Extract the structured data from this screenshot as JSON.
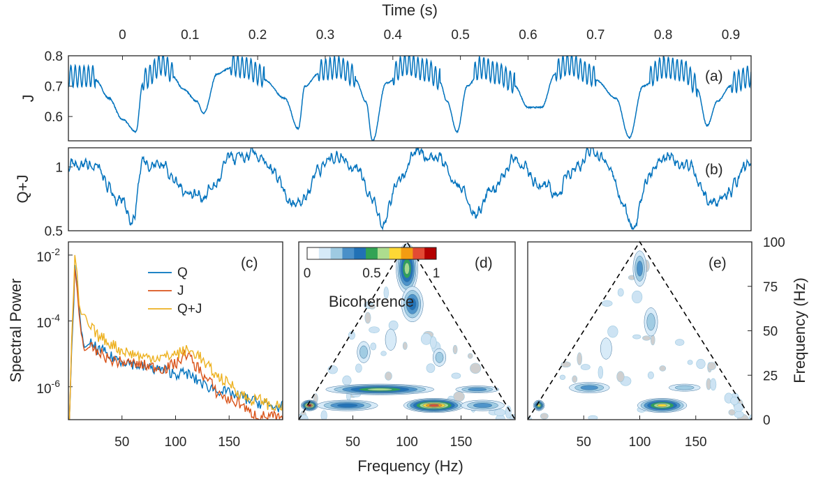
{
  "figure": {
    "top_axis_label": "Time (s)",
    "x_axis_label": "Frequency (Hz)",
    "right_axis_label": "Frequency (Hz)",
    "colors": {
      "Q": "#0072bd",
      "J": "#d95319",
      "QJ": "#edb120",
      "trace": "#0072bd",
      "frame": "#262626"
    }
  },
  "chart_data": [
    {
      "id": "a",
      "type": "line",
      "panel_label": "(a)",
      "ylabel": "J",
      "xlabel": "Time (s)",
      "xlim": [
        -0.08,
        0.93
      ],
      "ylim": [
        0.52,
        0.8
      ],
      "xticks": [
        0,
        0.1,
        0.2,
        0.3,
        0.4,
        0.5,
        0.6,
        0.7,
        0.8,
        0.9
      ],
      "xtick_labels": [
        "0",
        "0.1",
        "0.2",
        "0.3",
        "0.4",
        "0.5",
        "0.6",
        "0.7",
        "0.8",
        "0.9"
      ],
      "yticks": [
        0.6,
        0.7,
        0.8
      ],
      "ytick_labels": [
        "0.6",
        "0.7",
        "0.8"
      ],
      "series": [
        {
          "name": "J",
          "color": "#0072bd",
          "shape_points": [
            [
              -0.08,
              0.72
            ],
            [
              -0.04,
              0.72
            ],
            [
              -0.02,
              0.66
            ],
            [
              0.0,
              0.59
            ],
            [
              0.02,
              0.55
            ],
            [
              0.03,
              0.71
            ],
            [
              0.06,
              0.76
            ],
            [
              0.075,
              0.73
            ],
            [
              0.09,
              0.69
            ],
            [
              0.11,
              0.65
            ],
            [
              0.12,
              0.61
            ],
            [
              0.14,
              0.74
            ],
            [
              0.16,
              0.76
            ],
            [
              0.18,
              0.75
            ],
            [
              0.21,
              0.72
            ],
            [
              0.24,
              0.66
            ],
            [
              0.26,
              0.56
            ],
            [
              0.27,
              0.7
            ],
            [
              0.29,
              0.74
            ],
            [
              0.32,
              0.75
            ],
            [
              0.345,
              0.72
            ],
            [
              0.36,
              0.65
            ],
            [
              0.37,
              0.52
            ],
            [
              0.39,
              0.71
            ],
            [
              0.42,
              0.76
            ],
            [
              0.45,
              0.74
            ],
            [
              0.47,
              0.71
            ],
            [
              0.48,
              0.65
            ],
            [
              0.495,
              0.55
            ],
            [
              0.51,
              0.7
            ],
            [
              0.53,
              0.75
            ],
            [
              0.555,
              0.73
            ],
            [
              0.58,
              0.7
            ],
            [
              0.6,
              0.63
            ],
            [
              0.62,
              0.63
            ],
            [
              0.64,
              0.74
            ],
            [
              0.66,
              0.76
            ],
            [
              0.7,
              0.72
            ],
            [
              0.73,
              0.66
            ],
            [
              0.75,
              0.53
            ],
            [
              0.77,
              0.7
            ],
            [
              0.8,
              0.75
            ],
            [
              0.83,
              0.74
            ],
            [
              0.85,
              0.69
            ],
            [
              0.865,
              0.57
            ],
            [
              0.88,
              0.65
            ],
            [
              0.9,
              0.7
            ],
            [
              0.93,
              0.72
            ]
          ],
          "oscillation_segments": [
            [
              -0.08,
              -0.04
            ],
            [
              0.03,
              0.075
            ],
            [
              0.16,
              0.21
            ],
            [
              0.29,
              0.345
            ],
            [
              0.4,
              0.47
            ],
            [
              0.52,
              0.58
            ],
            [
              0.64,
              0.7
            ],
            [
              0.78,
              0.85
            ],
            [
              0.9,
              0.93
            ]
          ]
        }
      ]
    },
    {
      "id": "b",
      "type": "line",
      "panel_label": "(b)",
      "ylabel": "Q+J",
      "xlim": [
        -0.08,
        0.93
      ],
      "ylim": [
        0.5,
        1.15
      ],
      "yticks": [
        0.5,
        1
      ],
      "ytick_labels": [
        "0.5",
        "1"
      ],
      "series": [
        {
          "name": "Q+J",
          "color": "#0072bd",
          "shape_points": [
            [
              -0.08,
              1.02
            ],
            [
              -0.06,
              1.05
            ],
            [
              -0.04,
              1.0
            ],
            [
              -0.02,
              0.82
            ],
            [
              0.0,
              0.7
            ],
            [
              0.015,
              0.6
            ],
            [
              0.03,
              1.05
            ],
            [
              0.06,
              1.02
            ],
            [
              0.09,
              0.82
            ],
            [
              0.12,
              0.78
            ],
            [
              0.135,
              0.85
            ],
            [
              0.16,
              1.05
            ],
            [
              0.2,
              1.08
            ],
            [
              0.22,
              0.95
            ],
            [
              0.25,
              0.7
            ],
            [
              0.27,
              0.78
            ],
            [
              0.29,
              1.0
            ],
            [
              0.32,
              1.1
            ],
            [
              0.35,
              1.0
            ],
            [
              0.37,
              0.72
            ],
            [
              0.385,
              0.55
            ],
            [
              0.41,
              0.9
            ],
            [
              0.44,
              1.12
            ],
            [
              0.47,
              1.05
            ],
            [
              0.5,
              0.85
            ],
            [
              0.52,
              0.62
            ],
            [
              0.55,
              0.85
            ],
            [
              0.58,
              1.07
            ],
            [
              0.61,
              0.9
            ],
            [
              0.64,
              0.78
            ],
            [
              0.67,
              1.02
            ],
            [
              0.7,
              1.12
            ],
            [
              0.72,
              1.0
            ],
            [
              0.74,
              0.7
            ],
            [
              0.755,
              0.58
            ],
            [
              0.78,
              0.95
            ],
            [
              0.81,
              1.08
            ],
            [
              0.84,
              1.0
            ],
            [
              0.87,
              0.72
            ],
            [
              0.9,
              0.85
            ],
            [
              0.93,
              1.02
            ]
          ]
        }
      ]
    },
    {
      "id": "c",
      "type": "line",
      "panel_label": "(c)",
      "ylabel": "Spectral Power",
      "xlabel": "",
      "xlim": [
        0,
        200
      ],
      "ylim_log10": [
        -7,
        -1.6
      ],
      "yscale": "log",
      "xticks": [
        50,
        100,
        150
      ],
      "xtick_labels": [
        "50",
        "100",
        "150"
      ],
      "yticks_log10": [
        -6,
        -4,
        -2
      ],
      "ytick_labels": [
        {
          "base": "10",
          "exp": "-6"
        },
        {
          "base": "10",
          "exp": "-4"
        },
        {
          "base": "10",
          "exp": "-2"
        }
      ],
      "legend": [
        "Q",
        "J",
        "Q+J"
      ],
      "series": [
        {
          "name": "Q",
          "color": "#0072bd",
          "x": [
            1,
            3,
            5,
            6,
            8,
            10,
            12,
            15,
            20,
            30,
            40,
            50,
            60,
            70,
            80,
            90,
            100,
            110,
            120,
            130,
            140,
            150,
            160,
            170,
            180,
            190,
            200
          ],
          "log10_y": [
            -7,
            -4.9,
            -3.5,
            -2.3,
            -2.9,
            -3.6,
            -4.3,
            -4.8,
            -4.7,
            -4.9,
            -5.1,
            -5.2,
            -5.3,
            -5.4,
            -5.45,
            -5.5,
            -5.6,
            -5.6,
            -5.8,
            -6.0,
            -6.1,
            -6.2,
            -6.3,
            -6.4,
            -6.5,
            -6.6,
            -6.6
          ]
        },
        {
          "name": "J",
          "color": "#d95319",
          "x": [
            1,
            3,
            5,
            6,
            8,
            10,
            12,
            15,
            20,
            30,
            40,
            50,
            60,
            70,
            80,
            90,
            100,
            110,
            120,
            130,
            140,
            150,
            160,
            170,
            180,
            190,
            200
          ],
          "log10_y": [
            -7,
            -4.7,
            -3.2,
            -2.4,
            -3.0,
            -3.8,
            -4.4,
            -4.9,
            -4.8,
            -5.0,
            -5.2,
            -5.25,
            -5.3,
            -5.35,
            -5.4,
            -5.45,
            -5.3,
            -5.0,
            -5.4,
            -5.8,
            -6.2,
            -6.4,
            -6.5,
            -6.8,
            -6.9,
            -6.9,
            -7.0
          ]
        },
        {
          "name": "Q+J",
          "color": "#edb120",
          "x": [
            1,
            3,
            5,
            6,
            8,
            10,
            12,
            15,
            20,
            30,
            40,
            50,
            60,
            70,
            80,
            90,
            100,
            110,
            120,
            130,
            140,
            150,
            160,
            170,
            180,
            190,
            200
          ],
          "log10_y": [
            -7,
            -4.6,
            -3.0,
            -2.0,
            -2.5,
            -3.5,
            -3.8,
            -3.8,
            -4.2,
            -4.5,
            -4.7,
            -4.9,
            -5.0,
            -5.1,
            -5.1,
            -5.1,
            -5.0,
            -4.9,
            -5.0,
            -5.4,
            -5.7,
            -5.9,
            -6.2,
            -6.4,
            -6.4,
            -6.6,
            -6.6
          ]
        }
      ]
    },
    {
      "id": "d",
      "type": "heatmap",
      "panel_label": "(d)",
      "colorbar_label": "Bicoherence",
      "colorbar_ticks": [
        "0",
        "0.5",
        "1"
      ],
      "colorbar_colors": [
        "#ffffff",
        "#d6eaf8",
        "#9ecae1",
        "#4a90c8",
        "#2171b5",
        "#31a354",
        "#addd8e",
        "#fdd835",
        "#f39c12",
        "#e34a33",
        "#b30000"
      ],
      "xlim": [
        0,
        200
      ],
      "ylim": [
        0,
        100
      ],
      "xticks": [
        50,
        100,
        150
      ],
      "xtick_labels": [
        "50",
        "100",
        "150"
      ],
      "regions": [
        {
          "x": 10,
          "y": 8,
          "rx": 8,
          "ry": 3,
          "level": 1.0
        },
        {
          "x": 45,
          "y": 8,
          "rx": 28,
          "ry": 3,
          "level": 0.4
        },
        {
          "x": 125,
          "y": 8,
          "rx": 28,
          "ry": 4,
          "level": 0.85
        },
        {
          "x": 170,
          "y": 8,
          "rx": 20,
          "ry": 3,
          "level": 0.3
        },
        {
          "x": 75,
          "y": 17,
          "rx": 50,
          "ry": 3,
          "level": 0.6
        },
        {
          "x": 165,
          "y": 17,
          "rx": 20,
          "ry": 2,
          "level": 0.25
        },
        {
          "x": 100,
          "y": 85,
          "rx": 10,
          "ry": 14,
          "level": 0.55
        },
        {
          "x": 105,
          "y": 65,
          "rx": 10,
          "ry": 10,
          "level": 0.35
        },
        {
          "x": 60,
          "y": 38,
          "rx": 6,
          "ry": 6,
          "level": 0.15
        },
        {
          "x": 130,
          "y": 35,
          "rx": 6,
          "ry": 5,
          "level": 0.15
        },
        {
          "x": 85,
          "y": 45,
          "rx": 5,
          "ry": 6,
          "level": 0.12
        }
      ]
    },
    {
      "id": "e",
      "type": "heatmap",
      "panel_label": "(e)",
      "ylabel": "Frequency (Hz)",
      "xlim": [
        0,
        200
      ],
      "ylim": [
        0,
        100
      ],
      "xticks": [
        50,
        100,
        150
      ],
      "xtick_labels": [
        "50",
        "100",
        "150"
      ],
      "yticks": [
        0,
        25,
        50,
        75,
        100
      ],
      "ytick_labels": [
        "0",
        "25",
        "50",
        "75",
        "100"
      ],
      "regions": [
        {
          "x": 10,
          "y": 8,
          "rx": 5,
          "ry": 3,
          "level": 0.65
        },
        {
          "x": 120,
          "y": 8,
          "rx": 22,
          "ry": 4,
          "level": 0.7
        },
        {
          "x": 55,
          "y": 18,
          "rx": 18,
          "ry": 3,
          "level": 0.25
        },
        {
          "x": 140,
          "y": 18,
          "rx": 14,
          "ry": 2,
          "level": 0.15
        },
        {
          "x": 100,
          "y": 85,
          "rx": 6,
          "ry": 10,
          "level": 0.25
        },
        {
          "x": 110,
          "y": 55,
          "rx": 6,
          "ry": 8,
          "level": 0.2
        },
        {
          "x": 70,
          "y": 40,
          "rx": 5,
          "ry": 6,
          "level": 0.12
        }
      ]
    }
  ]
}
